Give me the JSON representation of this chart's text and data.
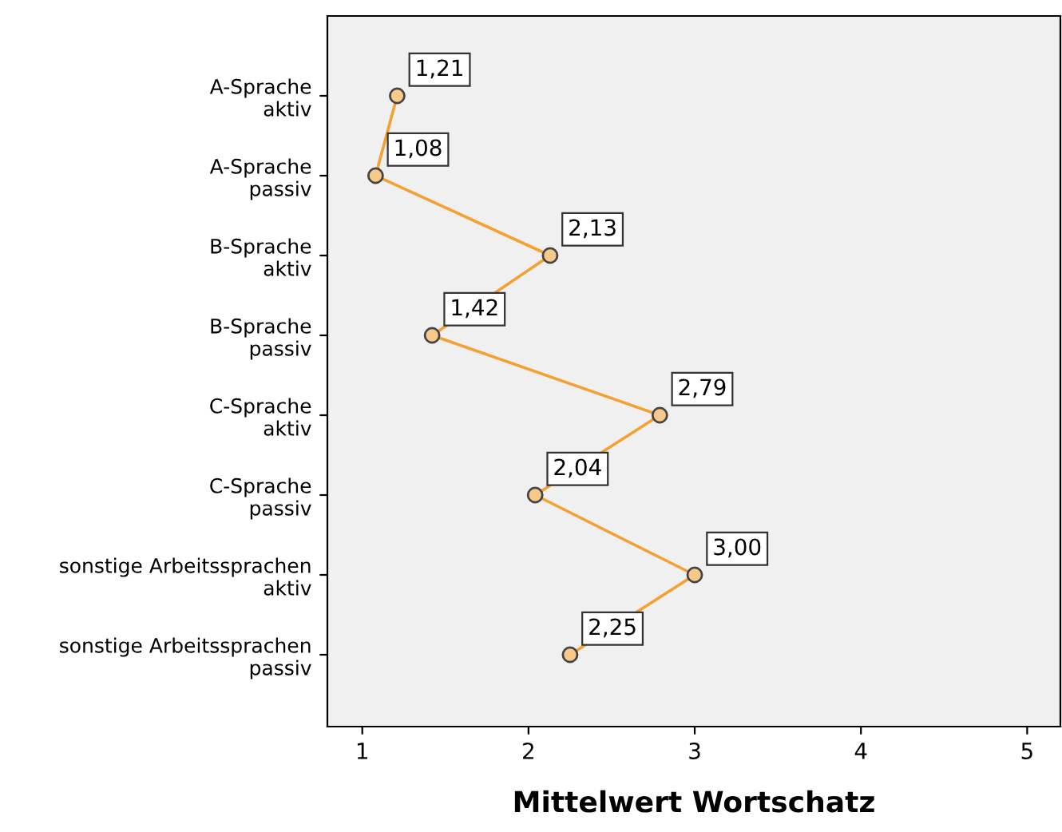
{
  "chart_data": {
    "type": "line",
    "orientation": "horizontal",
    "xlabel": "Mittelwert Wortschatz",
    "categories": [
      "A-Sprache\naktiv",
      "A-Sprache\npassiv",
      "B-Sprache\naktiv",
      "B-Sprache\npassiv",
      "C-Sprache\naktiv",
      "C-Sprache\npassiv",
      "sonstige Arbeitssprachen\naktiv",
      "sonstige Arbeitssprachen\npassiv"
    ],
    "series": [
      {
        "color": "#f5a033",
        "values": [
          1.21,
          1.08,
          2.13,
          1.42,
          2.79,
          2.04,
          3.0,
          2.25
        ],
        "value_labels": [
          "1,21",
          "1,08",
          "2,13",
          "1,42",
          "2,79",
          "2,04",
          "3,00",
          "2,25"
        ]
      }
    ],
    "xlim": [
      0.79,
      5.2
    ],
    "xticks": [
      1,
      2,
      3,
      4,
      5
    ],
    "marker": "circle",
    "line_style": "solid",
    "grid": false,
    "legend": false
  }
}
